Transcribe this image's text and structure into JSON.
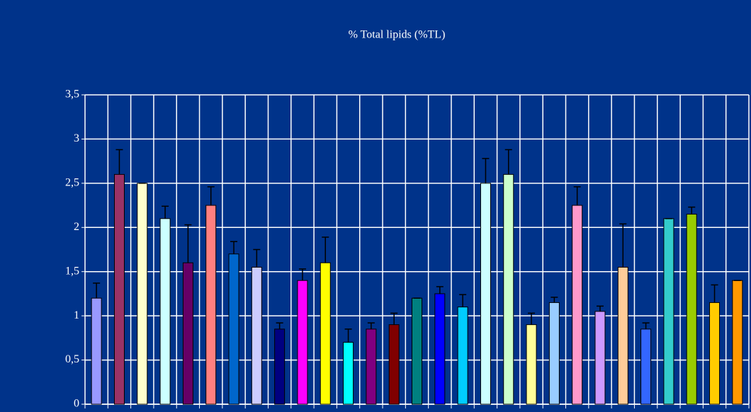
{
  "chart_data": {
    "type": "bar",
    "title": "% Total lipids (%TL)",
    "categories": [
      null,
      null,
      null,
      null,
      null,
      null,
      null,
      null,
      null,
      null,
      null,
      null,
      null,
      null,
      null,
      null,
      null,
      null,
      null,
      null,
      null,
      null,
      null,
      null,
      null,
      null,
      null,
      null,
      null
    ],
    "values": [
      1.2,
      2.6,
      2.5,
      2.1,
      1.6,
      2.25,
      1.7,
      1.55,
      0.85,
      1.4,
      1.6,
      0.7,
      0.85,
      0.9,
      1.2,
      1.25,
      1.1,
      2.5,
      2.6,
      0.9,
      1.15,
      2.25,
      1.05,
      1.55,
      0.85,
      2.1,
      2.15,
      1.15,
      1.4
    ],
    "errors": [
      0.17,
      0.28,
      0,
      0.14,
      0.43,
      0.21,
      0.14,
      0.2,
      0.07,
      0.13,
      0.29,
      0.15,
      0.07,
      0.13,
      0,
      0.08,
      0.14,
      0.28,
      0.28,
      0.13,
      0.06,
      0.21,
      0.06,
      0.49,
      0.07,
      0,
      0.08,
      0.2,
      0
    ],
    "colors": [
      "#9999ff",
      "#993366",
      "#ffffcc",
      "#ccffff",
      "#660066",
      "#ff8080",
      "#0066cc",
      "#ccccff",
      "#000080",
      "#ff00ff",
      "#ffff00",
      "#00ffff",
      "#800080",
      "#800000",
      "#008080",
      "#0000ff",
      "#00ccff",
      "#ccffff",
      "#ccffcc",
      "#ffff99",
      "#99ccff",
      "#ff99cc",
      "#cc99ff",
      "#ffcc99",
      "#3366ff",
      "#33cccc",
      "#99cc00",
      "#ffcc00",
      "#ff9900"
    ],
    "ylim": [
      0,
      3.5
    ],
    "yticks": [
      0,
      {
        "value": 0.5,
        "label": "0,5"
      },
      1,
      {
        "value": 1.5,
        "label": "1,5"
      },
      2,
      {
        "value": 2.5,
        "label": "2,5"
      },
      3,
      {
        "value": 3.5,
        "label": "3,5"
      }
    ],
    "grid": true
  }
}
